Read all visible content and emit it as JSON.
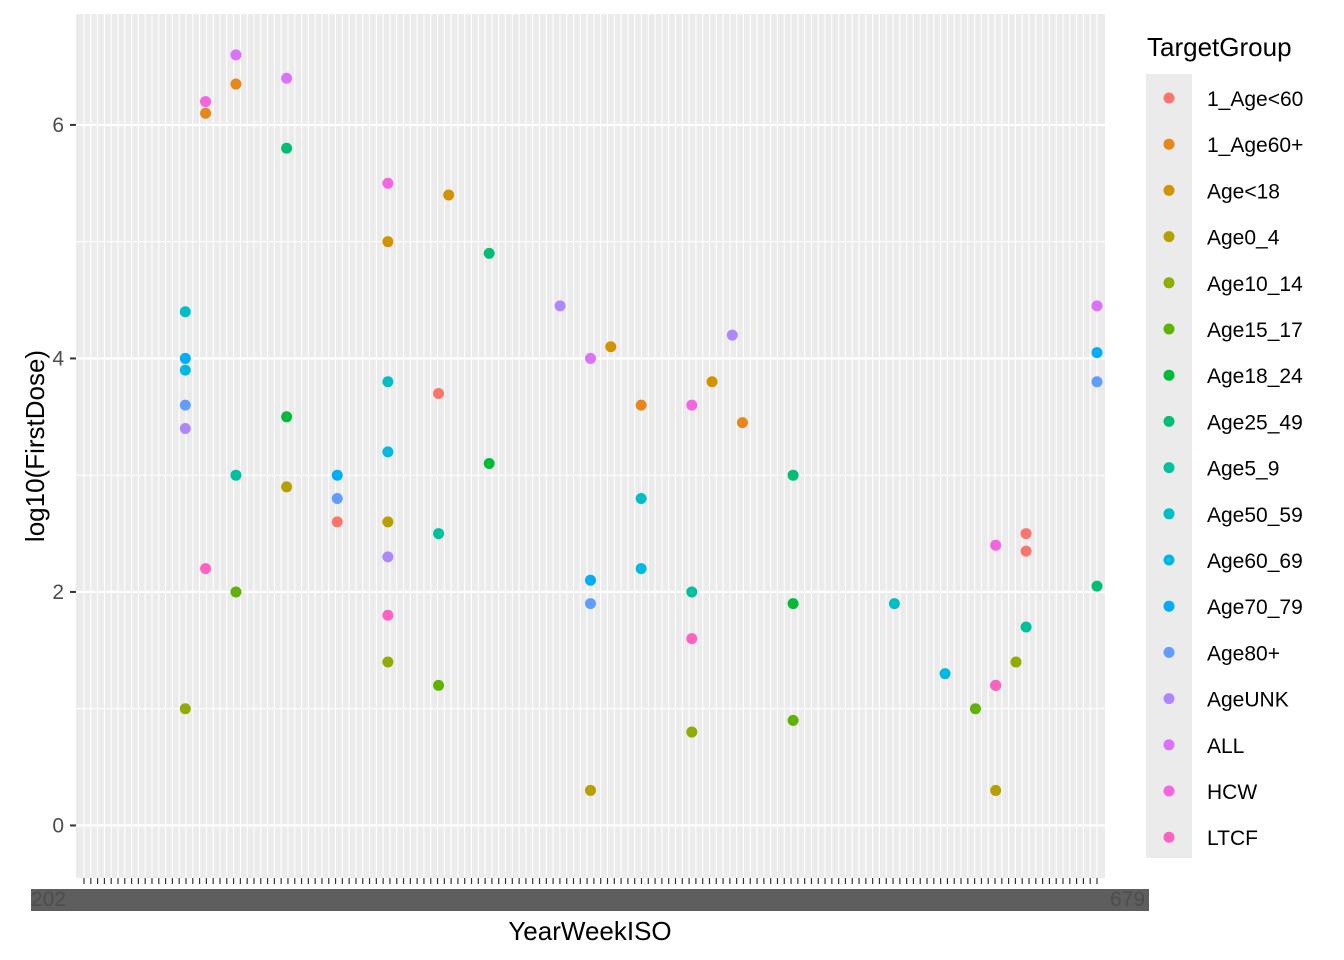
{
  "chart_data": {
    "type": "scatter",
    "title": "",
    "xlabel": "YearWeekISO",
    "ylabel": "log10(FirstDose)",
    "ylim": [
      -0.45,
      6.95
    ],
    "y_ticks": [
      0,
      2,
      4,
      6
    ],
    "y_tick_labels": [
      "0",
      "2",
      "4",
      "6"
    ],
    "x_tick_labels_visible_fragment": [
      "202",
      "679"
    ],
    "grid": true,
    "legend_position": "right",
    "legend_title": "TargetGroup",
    "series": [
      {
        "name": "1_Age<60",
        "color": "#F8766D",
        "points": [
          [
            0.93,
            2.5
          ],
          [
            0.93,
            2.35
          ],
          [
            0.35,
            3.7
          ],
          [
            0.25,
            2.6
          ]
        ]
      },
      {
        "name": "1_Age60+",
        "color": "#E7861B",
        "points": [
          [
            0.12,
            6.1
          ],
          [
            0.15,
            6.35
          ],
          [
            0.55,
            3.6
          ],
          [
            0.65,
            3.45
          ]
        ]
      },
      {
        "name": "Age<18",
        "color": "#D39200",
        "points": [
          [
            0.3,
            5.0
          ],
          [
            0.36,
            5.4
          ],
          [
            0.52,
            4.1
          ],
          [
            0.62,
            3.8
          ]
        ]
      },
      {
        "name": "Age0_4",
        "color": "#B79F00",
        "points": [
          [
            0.2,
            2.9
          ],
          [
            0.3,
            2.6
          ],
          [
            0.5,
            0.3
          ],
          [
            0.9,
            0.3
          ]
        ]
      },
      {
        "name": "Age10_14",
        "color": "#93AA00",
        "points": [
          [
            0.1,
            1.0
          ],
          [
            0.3,
            1.4
          ],
          [
            0.6,
            0.8
          ],
          [
            0.92,
            1.4
          ]
        ]
      },
      {
        "name": "Age15_17",
        "color": "#5EB300",
        "points": [
          [
            0.15,
            2.0
          ],
          [
            0.35,
            1.2
          ],
          [
            0.7,
            0.9
          ],
          [
            0.88,
            1.0
          ]
        ]
      },
      {
        "name": "Age18_24",
        "color": "#00BA38",
        "points": [
          [
            0.2,
            3.5
          ],
          [
            0.4,
            3.1
          ],
          [
            0.7,
            1.9
          ],
          [
            0.9,
            1.2
          ]
        ]
      },
      {
        "name": "Age25_49",
        "color": "#00BF74",
        "points": [
          [
            0.2,
            5.8
          ],
          [
            0.4,
            4.9
          ],
          [
            0.7,
            3.0
          ],
          [
            1.0,
            2.05
          ]
        ]
      },
      {
        "name": "Age5_9",
        "color": "#00C19F",
        "points": [
          [
            0.15,
            3.0
          ],
          [
            0.35,
            2.5
          ],
          [
            0.6,
            2.0
          ],
          [
            0.93,
            1.7
          ]
        ]
      },
      {
        "name": "Age50_59",
        "color": "#00BFC4",
        "points": [
          [
            0.1,
            4.4
          ],
          [
            0.3,
            3.8
          ],
          [
            0.55,
            2.8
          ],
          [
            0.8,
            1.9
          ]
        ]
      },
      {
        "name": "Age60_69",
        "color": "#00B9E3",
        "points": [
          [
            0.1,
            3.9
          ],
          [
            0.3,
            3.2
          ],
          [
            0.55,
            2.2
          ],
          [
            0.85,
            1.3
          ]
        ]
      },
      {
        "name": "Age70_79",
        "color": "#00ADFA",
        "points": [
          [
            0.1,
            4.0
          ],
          [
            0.25,
            3.0
          ],
          [
            0.5,
            2.1
          ],
          [
            1.0,
            4.05
          ]
        ]
      },
      {
        "name": "Age80+",
        "color": "#619CFF",
        "points": [
          [
            0.1,
            3.6
          ],
          [
            0.25,
            2.8
          ],
          [
            0.5,
            1.9
          ],
          [
            1.0,
            3.8
          ]
        ]
      },
      {
        "name": "AgeUNK",
        "color": "#AE87FF",
        "points": [
          [
            0.1,
            3.4
          ],
          [
            0.3,
            2.3
          ],
          [
            0.64,
            4.2
          ],
          [
            0.47,
            4.45
          ]
        ]
      },
      {
        "name": "ALL",
        "color": "#DB72FB",
        "points": [
          [
            0.15,
            6.6
          ],
          [
            0.2,
            6.4
          ],
          [
            0.5,
            4.0
          ],
          [
            1.0,
            4.45
          ]
        ]
      },
      {
        "name": "HCW",
        "color": "#F564E3",
        "points": [
          [
            0.12,
            6.2
          ],
          [
            0.3,
            5.5
          ],
          [
            0.6,
            3.6
          ],
          [
            0.9,
            2.4
          ]
        ]
      },
      {
        "name": "LTCF",
        "color": "#FF61C3",
        "points": [
          [
            0.12,
            2.2
          ],
          [
            0.3,
            1.8
          ],
          [
            0.6,
            1.6
          ],
          [
            0.9,
            1.2
          ]
        ]
      }
    ]
  }
}
